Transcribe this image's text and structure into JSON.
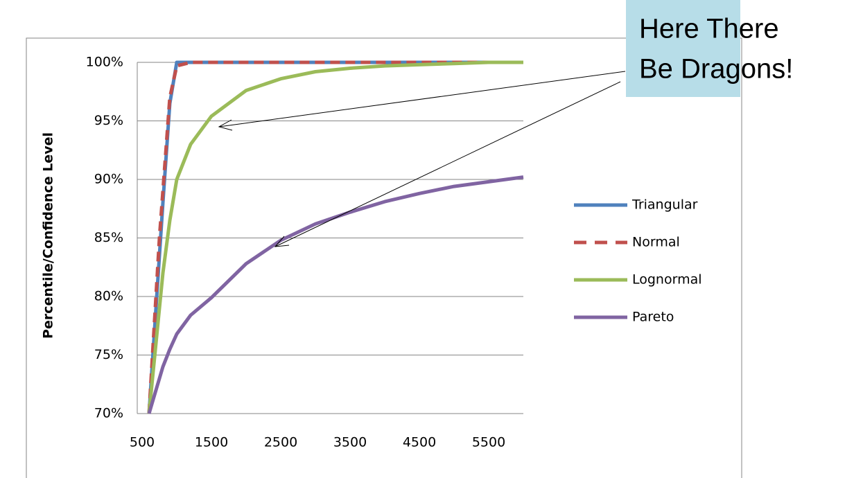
{
  "chart_data": {
    "type": "line",
    "y_label": "Percentile/Confidence Level",
    "x": [
      600,
      650,
      700,
      750,
      800,
      900,
      1000,
      1200,
      1500,
      2000,
      2500,
      3000,
      3500,
      4000,
      4500,
      5000,
      5500,
      6000
    ],
    "series": [
      {
        "name": "Triangular",
        "color": "#4f81bd",
        "dash": false,
        "values": [
          70,
          74.5,
          79,
          83.5,
          88,
          96.5,
          100,
          100,
          100,
          100,
          100,
          100,
          100,
          100,
          100,
          100,
          100,
          100
        ]
      },
      {
        "name": "Normal",
        "color": "#c0504d",
        "dash": true,
        "values": [
          70,
          75,
          80,
          85,
          89,
          97,
          99.7,
          100,
          100,
          100,
          100,
          100,
          100,
          100,
          100,
          100,
          100,
          100
        ]
      },
      {
        "name": "Lognormal",
        "color": "#9bbb59",
        "dash": false,
        "values": [
          70,
          73,
          76,
          79,
          82,
          86.5,
          90,
          93,
          95.4,
          97.6,
          98.6,
          99.2,
          99.5,
          99.7,
          99.8,
          99.9,
          100,
          100
        ]
      },
      {
        "name": "Pareto",
        "color": "#8064a2",
        "dash": false,
        "values": [
          70,
          71,
          72,
          73,
          74,
          75.5,
          76.8,
          78.4,
          79.9,
          82.8,
          84.8,
          86.2,
          87.2,
          88.1,
          88.8,
          89.4,
          89.8,
          90.2
        ]
      }
    ],
    "xlim": [
      430,
      6000
    ],
    "xticks": [
      500,
      1500,
      2500,
      3500,
      4500,
      5500
    ],
    "ylim": [
      70,
      100
    ],
    "yticks": [
      {
        "value": 70,
        "label": "70%"
      },
      {
        "value": 75,
        "label": "75%"
      },
      {
        "value": 80,
        "label": "80%"
      },
      {
        "value": 85,
        "label": "85%"
      },
      {
        "value": 90,
        "label": "90%"
      },
      {
        "value": 95,
        "label": "95%"
      },
      {
        "value": 100,
        "label": "100%"
      }
    ],
    "grid": true,
    "legend": "right",
    "annotation": {
      "lines": [
        "Here There",
        "Be Dragons!"
      ]
    }
  }
}
